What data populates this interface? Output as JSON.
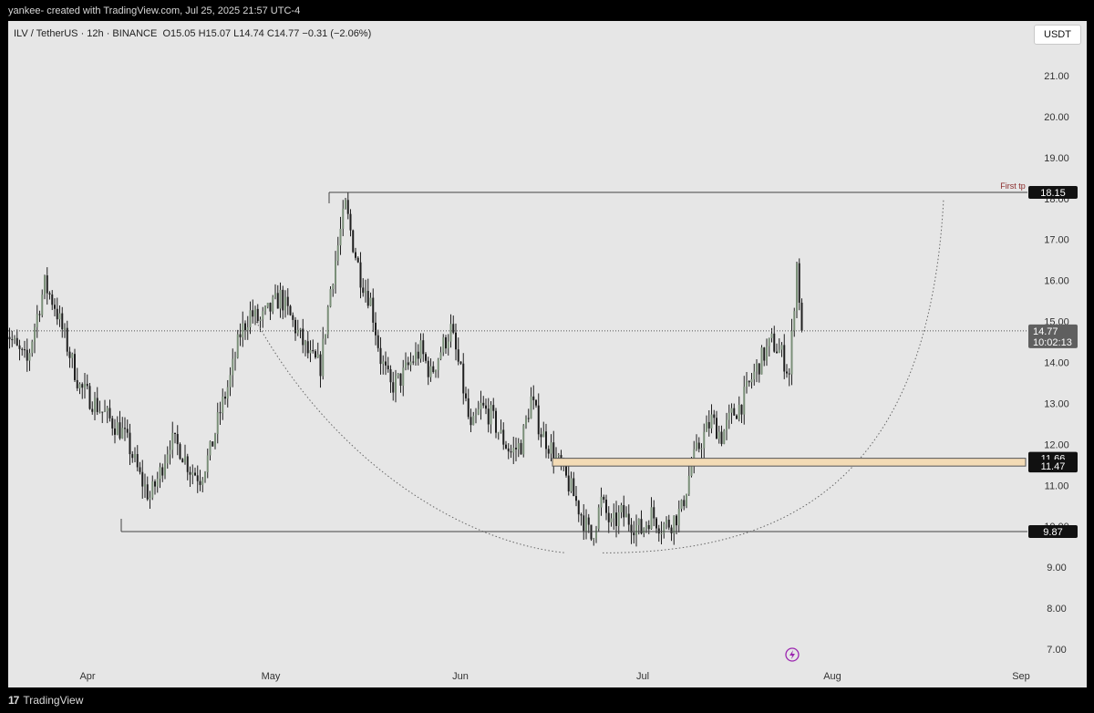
{
  "header": {
    "text": "yankee- created with TradingView.com, Jul 25, 2025 21:57 UTC-4"
  },
  "legend": {
    "symbol": "ILV / TetherUS · 12h · BINANCE",
    "open": "O15.05",
    "high": "H15.07",
    "low": "L14.74",
    "close": "C14.77",
    "change": "−0.31 (−2.06%)"
  },
  "currency_button": "USDT",
  "footer": {
    "brand": "TradingView",
    "logo_mark": "17"
  },
  "colors": {
    "up": "#7a8f78",
    "down": "#1f1f1f",
    "zone_fill": "#f3dbb5",
    "annotation": "#8b2b2b",
    "accent_icon": "#9c27b0"
  },
  "chart_data": {
    "type": "candlestick",
    "interval": "12h",
    "y_axis": {
      "ticks": [
        "7.00",
        "8.00",
        "9.00",
        "10.00",
        "11.00",
        "12.00",
        "13.00",
        "14.00",
        "15.00",
        "16.00",
        "17.00",
        "18.00",
        "19.00",
        "20.00",
        "21.00"
      ],
      "ylim": [
        6.6,
        22.2
      ]
    },
    "x_axis": {
      "ticks": [
        "Apr",
        "May",
        "Jun",
        "Jul",
        "Aug",
        "Sep"
      ]
    },
    "last_price": {
      "value": "14.77",
      "countdown": "10:02:13"
    },
    "levels": [
      {
        "value": 18.15,
        "label": "18.15",
        "note": "First tp"
      },
      {
        "value": 9.87,
        "label": "9.87"
      }
    ],
    "zone": {
      "low": 11.47,
      "high": 11.66,
      "low_label": "11.47",
      "high_label": "11.66"
    },
    "path": [
      [
        0,
        14.9
      ],
      [
        5,
        14.3
      ],
      [
        9,
        14.0
      ],
      [
        12,
        14.9
      ],
      [
        16,
        15.9
      ],
      [
        20,
        15.4
      ],
      [
        24,
        14.6
      ],
      [
        30,
        13.4
      ],
      [
        36,
        13.0
      ],
      [
        42,
        12.6
      ],
      [
        47,
        12.3
      ],
      [
        50,
        11.9
      ],
      [
        54,
        11.2
      ],
      [
        58,
        10.7
      ],
      [
        62,
        11.3
      ],
      [
        66,
        12.1
      ],
      [
        70,
        11.9
      ],
      [
        74,
        11.4
      ],
      [
        78,
        11.2
      ],
      [
        82,
        11.8
      ],
      [
        86,
        12.8
      ],
      [
        90,
        13.6
      ],
      [
        94,
        14.7
      ],
      [
        98,
        15.2
      ],
      [
        102,
        15.0
      ],
      [
        106,
        15.3
      ],
      [
        110,
        15.6
      ],
      [
        114,
        15.1
      ],
      [
        118,
        14.6
      ],
      [
        122,
        14.1
      ],
      [
        126,
        13.9
      ],
      [
        130,
        15.8
      ],
      [
        134,
        17.2
      ],
      [
        136,
        17.8
      ],
      [
        139,
        16.9
      ],
      [
        142,
        16.1
      ],
      [
        146,
        15.5
      ],
      [
        150,
        14.1
      ],
      [
        154,
        13.4
      ],
      [
        158,
        13.6
      ],
      [
        162,
        14.0
      ],
      [
        166,
        14.3
      ],
      [
        170,
        13.7
      ],
      [
        174,
        14.3
      ],
      [
        178,
        14.8
      ],
      [
        182,
        13.7
      ],
      [
        186,
        12.3
      ],
      [
        190,
        12.9
      ],
      [
        194,
        12.7
      ],
      [
        198,
        12.2
      ],
      [
        202,
        11.8
      ],
      [
        206,
        12.0
      ],
      [
        210,
        13.1
      ],
      [
        214,
        12.3
      ],
      [
        218,
        11.9
      ],
      [
        222,
        11.4
      ],
      [
        226,
        10.9
      ],
      [
        230,
        10.3
      ],
      [
        234,
        9.7
      ],
      [
        238,
        10.6
      ],
      [
        242,
        10.0
      ],
      [
        246,
        10.3
      ],
      [
        250,
        10.1
      ],
      [
        254,
        9.9
      ],
      [
        258,
        10.3
      ],
      [
        262,
        10.0
      ],
      [
        266,
        10.1
      ],
      [
        270,
        10.4
      ],
      [
        274,
        11.5
      ],
      [
        278,
        12.1
      ],
      [
        282,
        12.6
      ],
      [
        286,
        12.2
      ],
      [
        290,
        12.7
      ],
      [
        294,
        13.0
      ],
      [
        298,
        13.6
      ],
      [
        302,
        14.1
      ],
      [
        306,
        14.5
      ],
      [
        310,
        14.2
      ],
      [
        313,
        13.7
      ],
      [
        316,
        16.4
      ],
      [
        318,
        14.8
      ]
    ],
    "cup_curve": "dotted arc from May high to projected right rim near 18.0"
  }
}
